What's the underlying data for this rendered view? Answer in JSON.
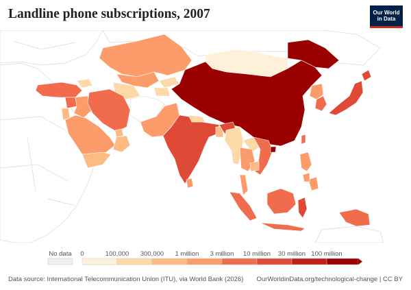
{
  "header": {
    "title": "Landline phone subscriptions, 2007",
    "logo_line1": "Our World",
    "logo_line2": "in Data"
  },
  "legend": {
    "no_data_label": "No data",
    "ticks": [
      "0",
      "100,000",
      "300,000",
      "1 million",
      "3 million",
      "10 million",
      "30 million",
      "100 million"
    ],
    "colors": [
      "#fef0d9",
      "#fdd9a8",
      "#fdbb84",
      "#fc9c6a",
      "#f06c4c",
      "#de4a35",
      "#c21e15",
      "#9b0000"
    ],
    "no_data_color": "#efefef"
  },
  "footer": {
    "source": "Data source: International Telecommunication Union (ITU), via World Bank (2026)",
    "url": "OurWorldinData.org/technological-change | CC BY"
  },
  "map": {
    "background_fill": "#ffffff",
    "outline_color": "#d9d9d9",
    "regions": [
      {
        "name": "China",
        "fill": "#9b0000"
      },
      {
        "name": "India",
        "fill": "#de4a35"
      },
      {
        "name": "Japan",
        "fill": "#de4a35"
      },
      {
        "name": "South Korea",
        "fill": "#f06c4c"
      },
      {
        "name": "Kazakhstan",
        "fill": "#fc9c6a"
      },
      {
        "name": "Mongolia",
        "fill": "#fef0d9"
      },
      {
        "name": "Afghanistan",
        "fill": "#ffffff"
      },
      {
        "name": "Iran",
        "fill": "#f06c4c"
      },
      {
        "name": "Turkey",
        "fill": "#f06c4c"
      },
      {
        "name": "Saudi Arabia",
        "fill": "#fc9c6a"
      },
      {
        "name": "Pakistan",
        "fill": "#fc9c6a"
      },
      {
        "name": "Indonesia",
        "fill": "#f06c4c"
      },
      {
        "name": "Thailand",
        "fill": "#fc9c6a"
      },
      {
        "name": "Vietnam",
        "fill": "#f06c4c"
      },
      {
        "name": "Philippines",
        "fill": "#fc9c6a"
      },
      {
        "name": "Malaysia",
        "fill": "#fc9c6a"
      },
      {
        "name": "Russia",
        "fill": "#9b0000"
      }
    ]
  }
}
